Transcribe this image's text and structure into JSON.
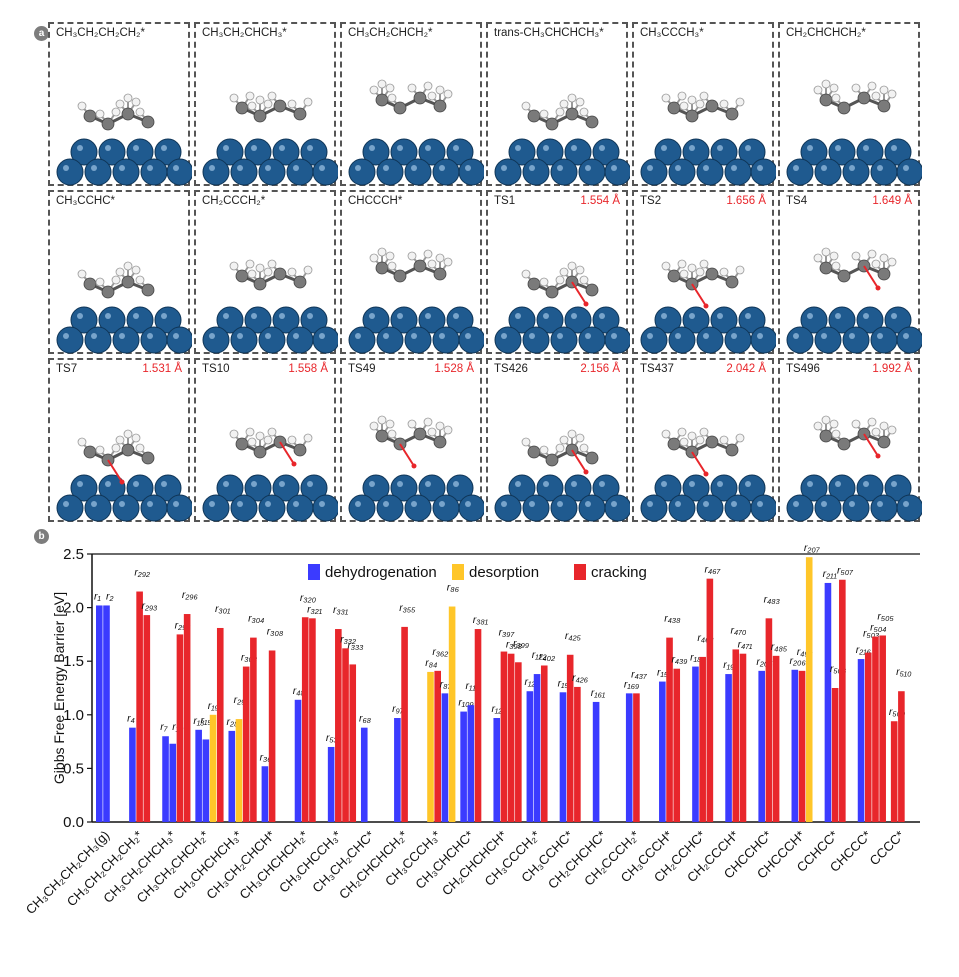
{
  "panel_a": {
    "letter": "a",
    "rows": [
      [
        {
          "label": "CH₃CH₂CH₂CH₂*",
          "dist": ""
        },
        {
          "label": "CH₃CH₂CHCH₃*",
          "dist": ""
        },
        {
          "label": "CH₃CH₂CHCH₂*",
          "dist": ""
        },
        {
          "label": "trans-CH₃CHCHCH₃*",
          "dist": ""
        },
        {
          "label": "CH₃CCCH₃*",
          "dist": ""
        },
        {
          "label": "CH₂CHCHCH₂*",
          "dist": ""
        }
      ],
      [
        {
          "label": "CH₃CCHC*",
          "dist": ""
        },
        {
          "label": "CH₂CCCH₂*",
          "dist": ""
        },
        {
          "label": "CHCCCH*",
          "dist": ""
        },
        {
          "label": "TS1",
          "dist": "1.554 Å"
        },
        {
          "label": "TS2",
          "dist": "1.656 Å"
        },
        {
          "label": "TS4",
          "dist": "1.649 Å"
        }
      ],
      [
        {
          "label": "TS7",
          "dist": "1.531 Å"
        },
        {
          "label": "TS10",
          "dist": "1.558 Å"
        },
        {
          "label": "TS49",
          "dist": "1.528 Å"
        },
        {
          "label": "TS426",
          "dist": "2.156 Å"
        },
        {
          "label": "TS437",
          "dist": "2.042 Å"
        },
        {
          "label": "TS496",
          "dist": "1.992 Å"
        }
      ]
    ]
  },
  "panel_b": {
    "letter": "b"
  },
  "colors": {
    "dehydrogenation": "#3b3bff",
    "desorption": "#ffc629",
    "cracking": "#e8262b",
    "atom_pt": "#1f5a8f",
    "atom_c": "#7a7a7a",
    "atom_h": "#f2f2f2",
    "arrow": "#e8262b"
  },
  "chart_data": {
    "type": "bar",
    "ylabel": "Gibbs Free Energy Barrier [eV]",
    "ylim": [
      0.0,
      2.5
    ],
    "yticks": [
      0.0,
      0.5,
      1.0,
      1.5,
      2.0,
      2.5
    ],
    "legend": [
      "dehydrogenation",
      "desorption",
      "cracking"
    ],
    "legend_position": "top-center",
    "categories": [
      "CH₃CH₂CH₂CH₃(g)",
      "CH₃CH₂CH₂CH₂*",
      "CH₃CH₂CHCH₃*",
      "CH₃CH₂CHCH₂*",
      "CH₃CHCHCH₃*",
      "CH₃CH₂CHCH*",
      "CH₃CHCHCH₂*",
      "CH₃CHCCH₃*",
      "CH₃CH₂CHC*",
      "CH₂CHCHCH₂*",
      "CH₃CCCH₃*",
      "CH₃CHCHC*",
      "CH₂CHCHCH*",
      "CH₃CCCH₂*",
      "CH₃CCHC*",
      "CH₂CHCHC*",
      "CH₂CCCH₂*",
      "CH₃CCCH*",
      "CH₂CCHC*",
      "CH₂CCCH*",
      "CHCCHC*",
      "CHCCCH*",
      "CCHCC*",
      "CHCCC*",
      "CCCC*"
    ],
    "groups": [
      {
        "bars": [
          {
            "t": "d",
            "v": 2.02,
            "lbl": [
              "r₁",
              "r₂"
            ]
          },
          {
            "t": "d",
            "v": 2.02,
            "lbl": []
          }
        ]
      },
      {
        "bars": [
          {
            "t": "d",
            "v": 0.88,
            "lbl": [
              "r₄"
            ]
          },
          {
            "t": "c",
            "v": 2.15,
            "lbl": [
              "r₂₉₂"
            ]
          },
          {
            "t": "c",
            "v": 1.93,
            "lbl": [
              "r₂₉₃"
            ]
          }
        ]
      },
      {
        "bars": [
          {
            "t": "d",
            "v": 0.8,
            "lbl": [
              "r₇",
              "r₁₀"
            ]
          },
          {
            "t": "d",
            "v": 0.73,
            "lbl": []
          },
          {
            "t": "c",
            "v": 1.75,
            "lbl": [
              "r₂₉₅"
            ]
          },
          {
            "t": "c",
            "v": 1.94,
            "lbl": [
              "r₂₉₆"
            ]
          }
        ]
      },
      {
        "bars": [
          {
            "t": "d",
            "v": 0.86,
            "lbl": [
              "r₁₃"
            ]
          },
          {
            "t": "d",
            "v": 0.77,
            "lbl": [
              "r₁₅"
            ]
          },
          {
            "t": "s",
            "v": 1.0,
            "lbl": [
              "r₁₉"
            ]
          },
          {
            "t": "c",
            "v": 1.81,
            "lbl": [
              "r₃₀₁"
            ]
          }
        ]
      },
      {
        "bars": [
          {
            "t": "d",
            "v": 0.85,
            "lbl": [
              "r₂₈"
            ]
          },
          {
            "t": "s",
            "v": 0.96,
            "lbl": [
              "r₂₉"
            ]
          },
          {
            "t": "c",
            "v": 1.45,
            "lbl": [
              "r₃₀₃"
            ]
          },
          {
            "t": "c",
            "v": 1.72,
            "lbl": [
              "r₃₀₄"
            ]
          }
        ]
      },
      {
        "bars": [
          {
            "t": "d",
            "v": 0.52,
            "lbl": [
              "r₃₆"
            ]
          },
          {
            "t": "c",
            "v": 1.6,
            "lbl": [
              "r₃₀₈"
            ]
          }
        ]
      },
      {
        "bars": [
          {
            "t": "d",
            "v": 1.14,
            "lbl": [
              "r₄₈"
            ]
          },
          {
            "t": "c",
            "v": 1.91,
            "lbl": [
              "r₃₂₀"
            ]
          },
          {
            "t": "c",
            "v": 1.9,
            "lbl": [
              "r₃₂₁"
            ]
          }
        ]
      },
      {
        "bars": [
          {
            "t": "d",
            "v": 0.7,
            "lbl": [
              "r₅₃"
            ]
          },
          {
            "t": "c",
            "v": 1.8,
            "lbl": [
              "r₃₃₁"
            ]
          },
          {
            "t": "c",
            "v": 1.62,
            "lbl": [
              "r₃₃₂"
            ]
          },
          {
            "t": "c",
            "v": 1.47,
            "lbl": [
              "r₃₃₃"
            ]
          }
        ]
      },
      {
        "bars": [
          {
            "t": "d",
            "v": 0.88,
            "lbl": [
              "r₆₈"
            ]
          }
        ]
      },
      {
        "bars": [
          {
            "t": "d",
            "v": 0.97,
            "lbl": [
              "r₉₇"
            ]
          },
          {
            "t": "c",
            "v": 1.82,
            "lbl": [
              "r₃₅₅"
            ]
          }
        ]
      },
      {
        "bars": [
          {
            "t": "s",
            "v": 1.4,
            "lbl": [
              "r₈₄"
            ]
          },
          {
            "t": "c",
            "v": 1.41,
            "lbl": [
              "r₃₆₂"
            ]
          },
          {
            "t": "d",
            "v": 1.2,
            "lbl": [
              "r₈₇"
            ]
          },
          {
            "t": "s",
            "v": 2.01,
            "lbl": [
              "r₈₆"
            ]
          }
        ]
      },
      {
        "bars": [
          {
            "t": "d",
            "v": 1.03,
            "lbl": [
              "r₁₀₉"
            ]
          },
          {
            "t": "d",
            "v": 1.09,
            "lbl": [
              "r₁₁₀"
            ]
          },
          {
            "t": "c",
            "v": 1.8,
            "lbl": [
              "r₃₈₁"
            ]
          }
        ]
      },
      {
        "bars": [
          {
            "t": "d",
            "v": 0.97,
            "lbl": [
              "r₁₂₃"
            ]
          },
          {
            "t": "c",
            "v": 1.59,
            "lbl": [
              "r₃₉₇"
            ]
          },
          {
            "t": "c",
            "v": 1.57,
            "lbl": [
              "r₃₉₈"
            ]
          },
          {
            "t": "c",
            "v": 1.49,
            "lbl": [
              "r₃₉₉"
            ]
          }
        ]
      },
      {
        "bars": [
          {
            "t": "d",
            "v": 1.22,
            "lbl": [
              "r₁₂₁"
            ]
          },
          {
            "t": "d",
            "v": 1.38,
            "lbl": [
              "r₁₂₂"
            ]
          },
          {
            "t": "c",
            "v": 1.46,
            "lbl": [
              "r₄₀₂"
            ]
          }
        ]
      },
      {
        "bars": [
          {
            "t": "d",
            "v": 1.21,
            "lbl": [
              "r₁₅₂"
            ]
          },
          {
            "t": "c",
            "v": 1.56,
            "lbl": [
              "r₄₂₅"
            ]
          },
          {
            "t": "c",
            "v": 1.26,
            "lbl": [
              "r₄₂₆"
            ]
          }
        ]
      },
      {
        "bars": [
          {
            "t": "d",
            "v": 1.12,
            "lbl": [
              "r₁₆₁"
            ]
          }
        ]
      },
      {
        "bars": [
          {
            "t": "d",
            "v": 1.2,
            "lbl": [
              "r₁₆₉"
            ]
          },
          {
            "t": "c",
            "v": 1.2,
            "lbl": [
              "r₄₃₇"
            ]
          }
        ]
      },
      {
        "bars": [
          {
            "t": "d",
            "v": 1.31,
            "lbl": [
              "r₁₅₄"
            ]
          },
          {
            "t": "c",
            "v": 1.72,
            "lbl": [
              "r₄₃₈"
            ]
          },
          {
            "t": "c",
            "v": 1.43,
            "lbl": [
              "r₄₃₉"
            ]
          }
        ]
      },
      {
        "bars": [
          {
            "t": "d",
            "v": 1.45,
            "lbl": [
              "r₁₈₆"
            ]
          },
          {
            "t": "c",
            "v": 1.54,
            "lbl": [
              "r₄₆₈"
            ]
          },
          {
            "t": "c",
            "v": 2.27,
            "lbl": [
              "r₄₆₇"
            ]
          }
        ]
      },
      {
        "bars": [
          {
            "t": "d",
            "v": 1.38,
            "lbl": [
              "r₁₉₈"
            ]
          },
          {
            "t": "c",
            "v": 1.61,
            "lbl": [
              "r₄₇₀"
            ]
          },
          {
            "t": "c",
            "v": 1.57,
            "lbl": [
              "r₄₇₁"
            ]
          }
        ]
      },
      {
        "bars": [
          {
            "t": "d",
            "v": 1.41,
            "lbl": [
              "r₂₀₅"
            ]
          },
          {
            "t": "c",
            "v": 1.9,
            "lbl": [
              "r₄₈₃"
            ]
          },
          {
            "t": "c",
            "v": 1.55,
            "lbl": [
              "r₄₈₅"
            ]
          }
        ]
      },
      {
        "bars": [
          {
            "t": "d",
            "v": 1.42,
            "lbl": [
              "r₂₀₆"
            ]
          },
          {
            "t": "c",
            "v": 1.41,
            "lbl": [
              "r₄₉₆"
            ]
          },
          {
            "t": "s",
            "v": 2.47,
            "lbl": [
              "r₂₀₇"
            ]
          }
        ]
      },
      {
        "bars": [
          {
            "t": "d",
            "v": 2.23,
            "lbl": [
              "r₂₁₁"
            ]
          },
          {
            "t": "c",
            "v": 1.25,
            "lbl": [
              "r₅₀₆"
            ]
          },
          {
            "t": "c",
            "v": 2.26,
            "lbl": [
              "r₅₀₇"
            ]
          }
        ]
      },
      {
        "bars": [
          {
            "t": "d",
            "v": 1.52,
            "lbl": [
              "r₂₁₆"
            ]
          },
          {
            "t": "c",
            "v": 1.58,
            "lbl": [
              "r₅₀₃"
            ]
          },
          {
            "t": "c",
            "v": 1.73,
            "lbl": [
              "r₅₀₄"
            ]
          },
          {
            "t": "c",
            "v": 1.74,
            "lbl": [
              "r₅₀₅"
            ]
          }
        ]
      },
      {
        "bars": [
          {
            "t": "c",
            "v": 0.94,
            "lbl": [
              "r₅₀₉"
            ]
          },
          {
            "t": "c",
            "v": 1.22,
            "lbl": [
              "r₅₁₀"
            ]
          }
        ]
      }
    ]
  }
}
